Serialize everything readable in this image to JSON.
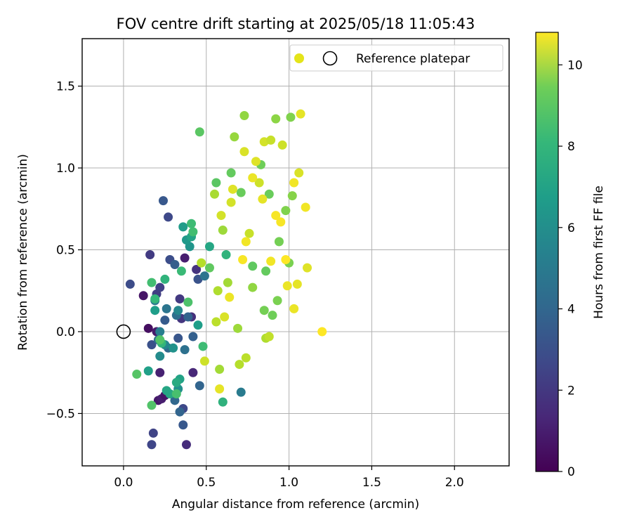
{
  "chart_data": {
    "type": "scatter",
    "title": "FOV centre drift starting at 2025/05/18 11:05:43",
    "xlabel": "Angular distance from reference (arcmin)",
    "ylabel": "Rotation from reference (arcmin)",
    "xlim": [
      -0.25,
      2.33
    ],
    "ylim": [
      -0.82,
      1.79
    ],
    "xticks": [
      0.0,
      0.5,
      1.0,
      1.5,
      2.0
    ],
    "xtick_labels": [
      "0.0",
      "0.5",
      "1.0",
      "1.5",
      "2.0"
    ],
    "yticks": [
      -0.5,
      0.0,
      0.5,
      1.0,
      1.5
    ],
    "ytick_labels": [
      "−0.5",
      "0.0",
      "0.5",
      "1.0",
      "1.5"
    ],
    "grid": true,
    "legend": {
      "placement": "top-right",
      "entries": [
        "",
        "Reference platepar"
      ]
    },
    "reference_point": {
      "x": 0.0,
      "y": 0.0,
      "label": "Reference platepar"
    },
    "colorbar": {
      "label": "Hours from first FF file",
      "range": [
        0,
        10.8
      ],
      "ticks": [
        0,
        2,
        4,
        6,
        8,
        10
      ],
      "tick_labels": [
        "0",
        "2",
        "4",
        "6",
        "8",
        "10"
      ],
      "colormap": "viridis"
    },
    "series": [
      {
        "value_keys": [
          "x",
          "y",
          "hours"
        ],
        "points": [
          [
            0.12,
            0.22,
            0.6
          ],
          [
            0.15,
            0.02,
            0.4
          ],
          [
            0.2,
            0.0,
            0.8
          ],
          [
            0.21,
            -0.42,
            0.7
          ],
          [
            0.23,
            -0.41,
            0.9
          ],
          [
            0.25,
            -0.39,
            0.6
          ],
          [
            0.22,
            -0.25,
            1.0
          ],
          [
            0.37,
            0.45,
            0.9
          ],
          [
            0.38,
            -0.69,
            1.4
          ],
          [
            0.44,
            0.38,
            1.6
          ],
          [
            0.42,
            -0.25,
            1.2
          ],
          [
            0.35,
            0.08,
            1.7
          ],
          [
            0.34,
            0.2,
            1.8
          ],
          [
            0.16,
            0.47,
            1.9
          ],
          [
            0.2,
            0.23,
            2.0
          ],
          [
            0.22,
            0.27,
            2.1
          ],
          [
            0.41,
            0.09,
            1.5
          ],
          [
            0.18,
            -0.62,
            2.2
          ],
          [
            0.17,
            -0.69,
            2.3
          ],
          [
            0.36,
            -0.47,
            2.4
          ],
          [
            0.04,
            0.29,
            2.5
          ],
          [
            0.28,
            0.44,
            2.6
          ],
          [
            0.27,
            0.7,
            2.4
          ],
          [
            0.24,
            0.8,
            3.0
          ],
          [
            0.17,
            -0.08,
            2.7
          ],
          [
            0.25,
            0.07,
            3.1
          ],
          [
            0.31,
            0.41,
            3.2
          ],
          [
            0.45,
            0.32,
            2.8
          ],
          [
            0.33,
            -0.04,
            2.9
          ],
          [
            0.36,
            -0.57,
            3.0
          ],
          [
            0.42,
            -0.03,
            3.3
          ],
          [
            0.39,
            0.09,
            3.4
          ],
          [
            0.34,
            -0.49,
            3.5
          ],
          [
            0.31,
            -0.42,
            3.6
          ],
          [
            0.46,
            -0.33,
            3.5
          ],
          [
            0.27,
            -0.1,
            3.7
          ],
          [
            0.21,
            -0.05,
            3.8
          ],
          [
            0.32,
            0.1,
            3.9
          ],
          [
            0.26,
            0.14,
            4.2
          ],
          [
            0.37,
            -0.11,
            4.0
          ],
          [
            0.19,
            0.19,
            4.4
          ],
          [
            0.49,
            0.34,
            4.1
          ],
          [
            0.22,
            0.0,
            4.6
          ],
          [
            0.71,
            -0.37,
            4.5
          ],
          [
            0.25,
            -0.08,
            5.0
          ],
          [
            0.22,
            -0.15,
            5.2
          ],
          [
            0.33,
            0.13,
            5.0
          ],
          [
            0.33,
            -0.35,
            5.4
          ],
          [
            0.4,
            0.52,
            5.6
          ],
          [
            0.3,
            -0.1,
            5.5
          ],
          [
            0.38,
            0.56,
            5.8
          ],
          [
            0.36,
            0.64,
            5.9
          ],
          [
            0.19,
            0.13,
            6.0
          ],
          [
            0.15,
            -0.24,
            6.1
          ],
          [
            0.34,
            -0.29,
            6.2
          ],
          [
            0.45,
            0.04,
            6.0
          ],
          [
            0.52,
            0.52,
            6.4
          ],
          [
            0.41,
            0.58,
            6.3
          ],
          [
            0.28,
            -0.38,
            6.5
          ],
          [
            0.26,
            -0.36,
            6.4
          ],
          [
            0.32,
            -0.31,
            6.6
          ],
          [
            0.6,
            -0.43,
            6.9
          ],
          [
            0.62,
            0.47,
            7.0
          ],
          [
            0.19,
            0.2,
            7.2
          ],
          [
            0.23,
            -0.07,
            7.1
          ],
          [
            0.25,
            0.32,
            7.0
          ],
          [
            0.35,
            0.37,
            7.3
          ],
          [
            0.48,
            -0.09,
            7.4
          ],
          [
            0.42,
            0.61,
            7.5
          ],
          [
            0.41,
            0.66,
            7.4
          ],
          [
            0.32,
            -0.38,
            7.6
          ],
          [
            0.17,
            0.3,
            7.5
          ],
          [
            0.39,
            0.18,
            7.7
          ],
          [
            0.17,
            -0.45,
            7.8
          ],
          [
            0.22,
            -0.05,
            7.8
          ],
          [
            0.08,
            -0.26,
            7.9
          ],
          [
            0.46,
            1.22,
            8.0
          ],
          [
            0.52,
            0.39,
            8.1
          ],
          [
            0.56,
            0.91,
            8.0
          ],
          [
            0.65,
            0.97,
            8.2
          ],
          [
            0.71,
            0.85,
            8.3
          ],
          [
            0.78,
            0.4,
            8.1
          ],
          [
            0.83,
            1.02,
            8.4
          ],
          [
            0.86,
            0.37,
            8.2
          ],
          [
            0.85,
            0.13,
            8.5
          ],
          [
            0.88,
            0.84,
            8.3
          ],
          [
            0.9,
            0.1,
            8.4
          ],
          [
            0.93,
            0.19,
            8.6
          ],
          [
            0.94,
            0.55,
            8.5
          ],
          [
            0.98,
            0.74,
            8.7
          ],
          [
            1.0,
            0.42,
            8.6
          ],
          [
            1.02,
            0.83,
            8.8
          ],
          [
            0.92,
            1.3,
            8.9
          ],
          [
            1.01,
            1.31,
            8.7
          ],
          [
            0.73,
            1.32,
            9.0
          ],
          [
            0.67,
            1.19,
            9.1
          ],
          [
            0.78,
            0.27,
            9.0
          ],
          [
            0.6,
            0.62,
            9.2
          ],
          [
            0.63,
            0.3,
            9.3
          ],
          [
            0.69,
            0.02,
            9.2
          ],
          [
            0.55,
            0.84,
            9.4
          ],
          [
            0.57,
            0.25,
            9.5
          ],
          [
            0.58,
            -0.23,
            9.3
          ],
          [
            0.7,
            -0.2,
            9.6
          ],
          [
            0.74,
            -0.16,
            9.7
          ],
          [
            0.86,
            -0.04,
            9.5
          ],
          [
            0.88,
            -0.03,
            9.8
          ],
          [
            0.47,
            0.42,
            9.6
          ],
          [
            0.56,
            0.06,
            9.7
          ],
          [
            0.76,
            0.6,
            9.9
          ],
          [
            0.82,
            0.91,
            10.0
          ],
          [
            0.85,
            1.16,
            10.1
          ],
          [
            0.89,
            1.17,
            9.9
          ],
          [
            0.96,
            1.14,
            10.0
          ],
          [
            1.06,
            0.97,
            10.2
          ],
          [
            1.07,
            1.33,
            10.4
          ],
          [
            1.1,
            0.76,
            10.6
          ],
          [
            1.11,
            0.39,
            10.3
          ],
          [
            1.03,
            0.14,
            10.5
          ],
          [
            1.2,
            0.0,
            10.8
          ],
          [
            0.92,
            0.71,
            10.7
          ],
          [
            0.74,
            0.55,
            10.6
          ],
          [
            0.66,
            0.87,
            10.3
          ],
          [
            0.59,
            0.71,
            10.1
          ],
          [
            0.61,
            0.09,
            10.2
          ],
          [
            0.58,
            -0.35,
            10.4
          ],
          [
            0.49,
            -0.18,
            10.0
          ],
          [
            0.64,
            0.21,
            10.5
          ],
          [
            0.72,
            0.44,
            10.7
          ],
          [
            0.84,
            0.81,
            10.4
          ],
          [
            0.89,
            0.43,
            10.6
          ],
          [
            0.78,
            0.94,
            10.5
          ],
          [
            0.73,
            1.1,
            10.2
          ],
          [
            0.8,
            1.04,
            10.3
          ],
          [
            0.65,
            0.79,
            10.1
          ],
          [
            0.98,
            0.44,
            10.8
          ],
          [
            1.03,
            0.91,
            10.6
          ],
          [
            0.95,
            0.67,
            10.7
          ],
          [
            1.05,
            0.29,
            10.4
          ],
          [
            0.99,
            0.28,
            10.5
          ]
        ]
      }
    ]
  }
}
